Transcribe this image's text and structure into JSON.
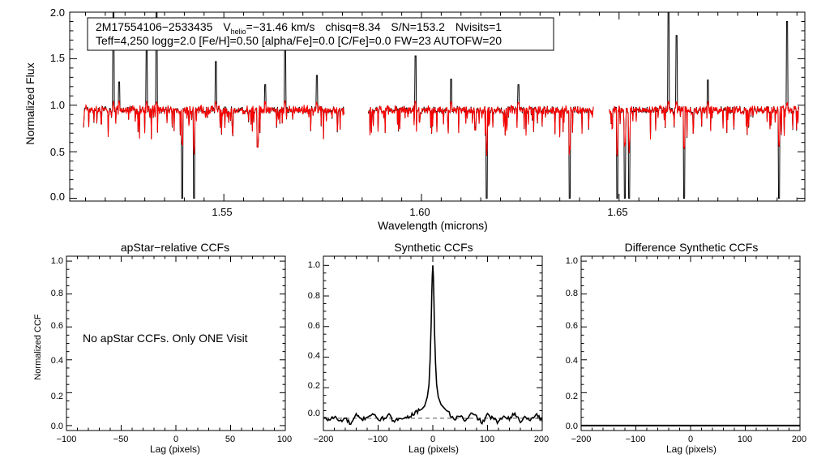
{
  "colors": {
    "observed": "#000000",
    "model": "#ff0000",
    "axis": "#000000",
    "dashed": "#555555"
  },
  "chart_data": [
    {
      "id": "spectrum",
      "type": "line",
      "xlabel": "Wavelength (microns)",
      "ylabel": "Normalized Flux",
      "xlim": [
        1.511,
        1.697
      ],
      "ylim": [
        -0.03,
        2.0
      ],
      "xticks": [
        "1.55",
        "1.60",
        "1.65"
      ],
      "xtick_values": [
        1.55,
        1.6,
        1.65
      ],
      "yticks": [
        "0.0",
        "0.5",
        "1.0",
        "1.5",
        "2.0"
      ],
      "ytick_values": [
        0.0,
        0.5,
        1.0,
        1.5,
        2.0
      ],
      "chips": [
        [
          1.5145,
          1.5805
        ],
        [
          1.5865,
          1.6435
        ],
        [
          1.6475,
          1.6955
        ]
      ],
      "continuum": 0.95,
      "spikes": [
        [
          1.522,
          2.0
        ],
        [
          1.533,
          2.0
        ],
        [
          1.5305,
          1.6
        ],
        [
          1.548,
          1.47
        ],
        [
          1.5655,
          1.67
        ],
        [
          1.5985,
          1.53
        ],
        [
          1.6625,
          2.0
        ],
        [
          1.6645,
          1.75
        ],
        [
          1.6925,
          1.9
        ],
        [
          1.5735,
          1.32
        ],
        [
          1.6075,
          1.28
        ],
        [
          1.6725,
          1.27
        ],
        [
          1.5235,
          1.25
        ],
        [
          1.5605,
          1.22
        ],
        [
          1.6245,
          1.22
        ]
      ],
      "dips": [
        [
          1.5395,
          0.0
        ],
        [
          1.5425,
          0.0
        ],
        [
          1.5585,
          0.55
        ],
        [
          1.6165,
          0.0
        ],
        [
          1.6375,
          0.0
        ],
        [
          1.6495,
          0.0
        ],
        [
          1.6515,
          0.0
        ],
        [
          1.6525,
          0.0
        ],
        [
          1.6665,
          0.0
        ],
        [
          1.6905,
          0.0
        ]
      ],
      "legend": {
        "object": "2M17554106−2533435",
        "v_symbol": "V",
        "v_sub": "helio",
        "v_value": "=−31.46 km/s",
        "chisq": "chisq=8.34",
        "snr": "S/N=153.2",
        "nvisits": "Nvisits=1",
        "params": "Teff=4,250 logg=2.0 [Fe/H]=0.50 [alpha/Fe]=0.0 [C/Fe]=0.0 FW=23 AUTOFW=20"
      },
      "series": [
        {
          "name": "observed"
        },
        {
          "name": "model"
        }
      ]
    },
    {
      "id": "apstar-ccf",
      "type": "line",
      "title": "apStar−relative CCFs",
      "xlabel": "Lag (pixels)",
      "ylabel": "Normalized CCF",
      "xlim": [
        -100,
        100
      ],
      "ylim": [
        -0.03,
        1.03
      ],
      "xticks": [
        "−100",
        "−50",
        "0",
        "50",
        "100"
      ],
      "xtick_values": [
        -100,
        -50,
        0,
        50,
        100
      ],
      "yticks": [
        "0.0",
        "0.2",
        "0.4",
        "0.6",
        "0.8",
        "1.0"
      ],
      "ytick_values": [
        0.0,
        0.2,
        0.4,
        0.6,
        0.8,
        1.0
      ],
      "annotation": "No apStar CCFs.  Only ONE Visit",
      "series": []
    },
    {
      "id": "synthetic-ccf",
      "type": "line",
      "title": "Synthetic CCFs",
      "xlabel": "Lag (pixels)",
      "ylabel": "",
      "xlim": [
        -200,
        200
      ],
      "ylim": [
        -0.08,
        1.06
      ],
      "xticks": [
        "−200",
        "−100",
        "0",
        "100",
        "200"
      ],
      "xtick_values": [
        -200,
        -100,
        0,
        100,
        200
      ],
      "yticks": [
        "0.0",
        "0.2",
        "0.4",
        "0.6",
        "0.8",
        "1.0"
      ],
      "ytick_values": [
        0.0,
        0.2,
        0.4,
        0.6,
        0.8,
        1.0
      ],
      "reference_line": 0.0,
      "series": [
        {
          "name": "ccf",
          "x": [
            -200,
            -190,
            -180,
            -170,
            -160,
            -150,
            -140,
            -130,
            -120,
            -110,
            -100,
            -90,
            -80,
            -70,
            -60,
            -50,
            -40,
            -30,
            -20,
            -15,
            -10,
            -7,
            -5,
            -3,
            -2,
            -1,
            0,
            1,
            2,
            3,
            5,
            7,
            10,
            15,
            20,
            30,
            40,
            50,
            60,
            70,
            80,
            90,
            100,
            110,
            120,
            130,
            140,
            150,
            160,
            170,
            180,
            190,
            200
          ],
          "y": [
            0.0,
            -0.01,
            0.01,
            -0.02,
            0.0,
            -0.04,
            0.02,
            -0.01,
            0.01,
            0.03,
            -0.01,
            0.0,
            0.02,
            -0.03,
            0.01,
            0.0,
            0.02,
            0.04,
            0.06,
            0.08,
            0.14,
            0.22,
            0.38,
            0.62,
            0.8,
            0.93,
            1.0,
            0.93,
            0.78,
            0.58,
            0.36,
            0.22,
            0.14,
            0.09,
            0.07,
            0.03,
            -0.01,
            0.02,
            -0.02,
            0.03,
            0.01,
            -0.03,
            0.02,
            0.0,
            -0.03,
            0.02,
            0.0,
            0.03,
            -0.02,
            0.01,
            -0.01,
            0.03,
            -0.02
          ]
        }
      ]
    },
    {
      "id": "difference-ccf",
      "type": "line",
      "title": "Difference Synthetic CCFs",
      "xlabel": "Lag (pixels)",
      "ylabel": "",
      "xlim": [
        -200,
        200
      ],
      "ylim": [
        -0.03,
        1.03
      ],
      "xticks": [
        "−200",
        "−100",
        "0",
        "100",
        "200"
      ],
      "xtick_values": [
        -200,
        -100,
        0,
        100,
        200
      ],
      "yticks": [
        "0.0",
        "0.2",
        "0.4",
        "0.6",
        "0.8",
        "1.0"
      ],
      "ytick_values": [
        0.0,
        0.2,
        0.4,
        0.6,
        0.8,
        1.0
      ],
      "series": [
        {
          "name": "difference",
          "x": [
            -200,
            200
          ],
          "y": [
            0.0,
            0.0
          ]
        }
      ]
    }
  ]
}
